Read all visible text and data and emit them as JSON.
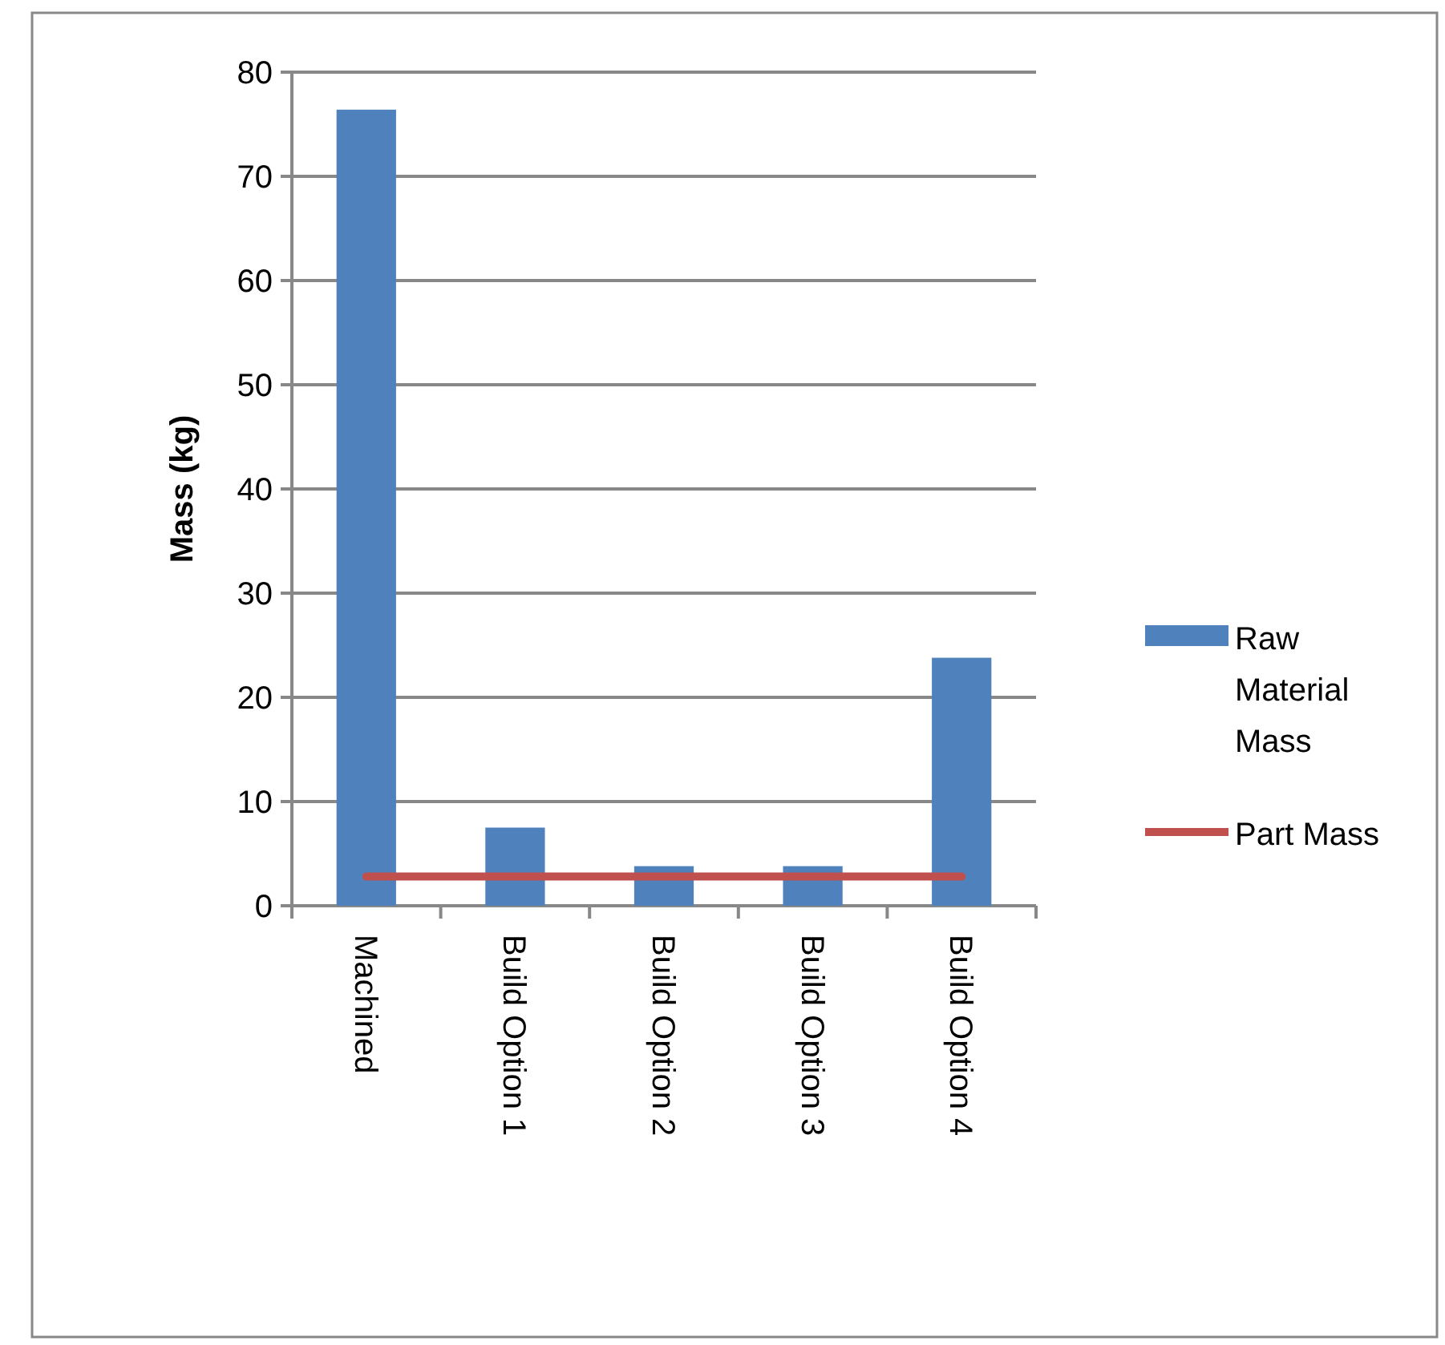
{
  "chart_data": {
    "type": "bar",
    "ylabel": "Mass (kg)",
    "categories": [
      "Machined",
      "Build Option 1",
      "Build Option 2",
      "Build Option 3",
      "Build Option 4"
    ],
    "series": [
      {
        "name": "Raw Material Mass",
        "color": "#4f81bd",
        "values": [
          76.4,
          7.5,
          3.8,
          3.8,
          23.8
        ]
      },
      {
        "name": "Part Mass",
        "type": "line",
        "color": "#c0504d",
        "values": [
          2.8,
          2.8,
          2.8,
          2.8,
          2.8
        ]
      }
    ],
    "ylim": [
      0,
      80
    ],
    "yticks": [
      0,
      10,
      20,
      30,
      40,
      50,
      60,
      70,
      80
    ],
    "grid": "y",
    "legend": "right",
    "marker": "none"
  }
}
